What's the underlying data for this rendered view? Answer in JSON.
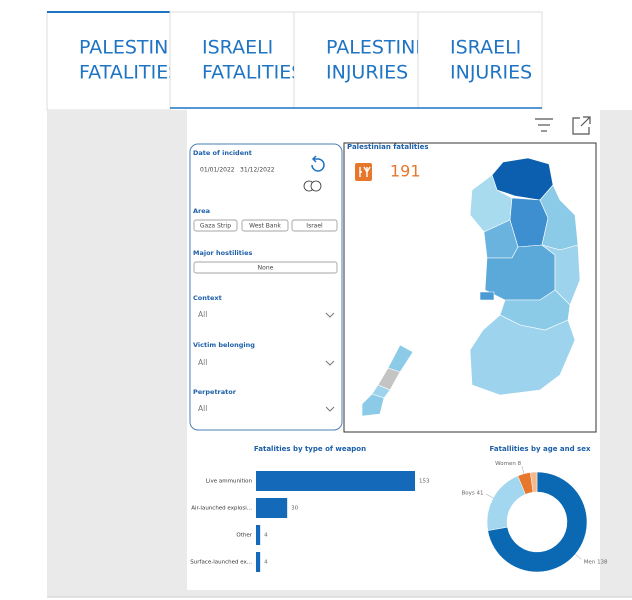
{
  "tabs": [
    {
      "lines": [
        "PALESTINIAN",
        "FATALITIES"
      ]
    },
    {
      "lines": [
        "ISRAELI",
        "FATALITIES"
      ]
    },
    {
      "lines": [
        "PALESTINIAN",
        "INJURIES"
      ]
    },
    {
      "lines": [
        "ISRAELI",
        "INJURIES"
      ]
    }
  ],
  "filters": {
    "date": {
      "label": "Date of incident",
      "start": "01/01/2022",
      "end": "31/12/2022"
    },
    "area": {
      "label": "Area",
      "options": [
        "Gaza Strip",
        "West Bank",
        "Israel"
      ]
    },
    "hostilities": {
      "label": "Major hostilities",
      "value": "None"
    },
    "dropdowns": [
      {
        "label": "Context",
        "value": "All"
      },
      {
        "label": "Victim belonging",
        "value": "All"
      },
      {
        "label": "Perpetrator",
        "value": "All"
      }
    ]
  },
  "map": {
    "title": "Palestinian fatalities",
    "count": 191
  },
  "chart_data": [
    {
      "type": "bar",
      "orientation": "horizontal",
      "title": "Fatalities by type of weapon",
      "categories": [
        "Live ammunition",
        "Air-launched explosi...",
        "Other",
        "Surface-launched ex..."
      ],
      "values": [
        153,
        30,
        4,
        4
      ],
      "color": "#1469b8"
    },
    {
      "type": "pie",
      "donut": true,
      "title": "Fatallities by age and sex",
      "categories": [
        "Men",
        "Boys",
        "Women",
        null
      ],
      "values": [
        138,
        41,
        8,
        4
      ],
      "colors": [
        "#0b69b4",
        "#a3d7f0",
        "#e8772e",
        "#f6b98a"
      ]
    }
  ]
}
